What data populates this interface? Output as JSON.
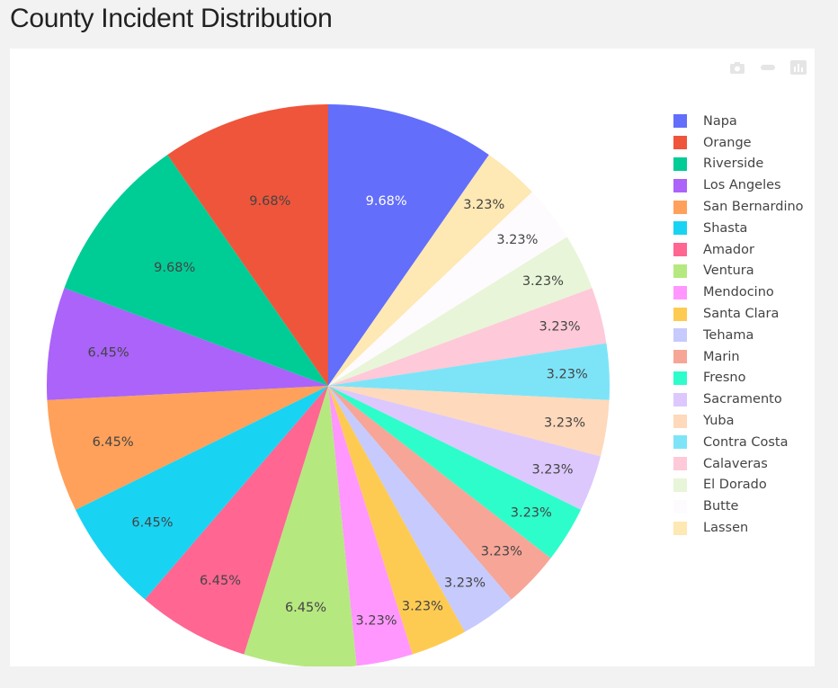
{
  "title": "County Incident Distribution",
  "modebar": [
    {
      "icon": "camera-icon"
    },
    {
      "icon": "zoom-icon"
    },
    {
      "icon": "plotly-logo-icon"
    }
  ],
  "chart_data": {
    "type": "pie",
    "title": "County Incident Distribution",
    "legend_position": "right",
    "direction": "clockwise",
    "slices": [
      {
        "label": "Napa",
        "value": 3,
        "percent": "9.68%",
        "color": "#636efa",
        "text_color": "#ffffff"
      },
      {
        "label": "Lassen",
        "value": 1,
        "percent": "3.23%",
        "color": "#fee8b3",
        "text_color": "#444444"
      },
      {
        "label": "Butte",
        "value": 1,
        "percent": "3.23%",
        "color": "#fefbff",
        "text_color": "#444444"
      },
      {
        "label": "El Dorado",
        "value": 1,
        "percent": "3.23%",
        "color": "#e8f5d8",
        "text_color": "#444444"
      },
      {
        "label": "Calaveras",
        "value": 1,
        "percent": "3.23%",
        "color": "#fec9d8",
        "text_color": "#444444"
      },
      {
        "label": "Contra Costa",
        "value": 1,
        "percent": "3.23%",
        "color": "#7de4f8",
        "text_color": "#444444"
      },
      {
        "label": "Yuba",
        "value": 1,
        "percent": "3.23%",
        "color": "#fed9bb",
        "text_color": "#444444"
      },
      {
        "label": "Sacramento",
        "value": 1,
        "percent": "3.23%",
        "color": "#dcc8fc",
        "text_color": "#444444"
      },
      {
        "label": "Fresno",
        "value": 1,
        "percent": "3.23%",
        "color": "#2dfdcb",
        "text_color": "#444444"
      },
      {
        "label": "Marin",
        "value": 1,
        "percent": "3.23%",
        "color": "#f6a597",
        "text_color": "#444444"
      },
      {
        "label": "Tehama",
        "value": 1,
        "percent": "3.23%",
        "color": "#c6cafc",
        "text_color": "#444444"
      },
      {
        "label": "Santa Clara",
        "value": 1,
        "percent": "3.23%",
        "color": "#fecb52",
        "text_color": "#444444"
      },
      {
        "label": "Mendocino",
        "value": 1,
        "percent": "3.23%",
        "color": "#ff97ff",
        "text_color": "#444444"
      },
      {
        "label": "Ventura",
        "value": 2,
        "percent": "6.45%",
        "color": "#b6e880",
        "text_color": "#444444"
      },
      {
        "label": "Amador",
        "value": 2,
        "percent": "6.45%",
        "color": "#ff6692",
        "text_color": "#444444"
      },
      {
        "label": "Shasta",
        "value": 2,
        "percent": "6.45%",
        "color": "#19d3f3",
        "text_color": "#444444"
      },
      {
        "label": "San Bernardino",
        "value": 2,
        "percent": "6.45%",
        "color": "#ffa15a",
        "text_color": "#444444"
      },
      {
        "label": "Los Angeles",
        "value": 2,
        "percent": "6.45%",
        "color": "#ab63fa",
        "text_color": "#444444"
      },
      {
        "label": "Riverside",
        "value": 3,
        "percent": "9.68%",
        "color": "#00cc96",
        "text_color": "#444444"
      },
      {
        "label": "Orange",
        "value": 3,
        "percent": "9.68%",
        "color": "#ef553b",
        "text_color": "#444444"
      }
    ],
    "legend_order": [
      "Napa",
      "Orange",
      "Riverside",
      "Los Angeles",
      "San Bernardino",
      "Shasta",
      "Amador",
      "Ventura",
      "Mendocino",
      "Santa Clara",
      "Tehama",
      "Marin",
      "Fresno",
      "Sacramento",
      "Yuba",
      "Contra Costa",
      "Calaveras",
      "El Dorado",
      "Butte",
      "Lassen"
    ]
  }
}
